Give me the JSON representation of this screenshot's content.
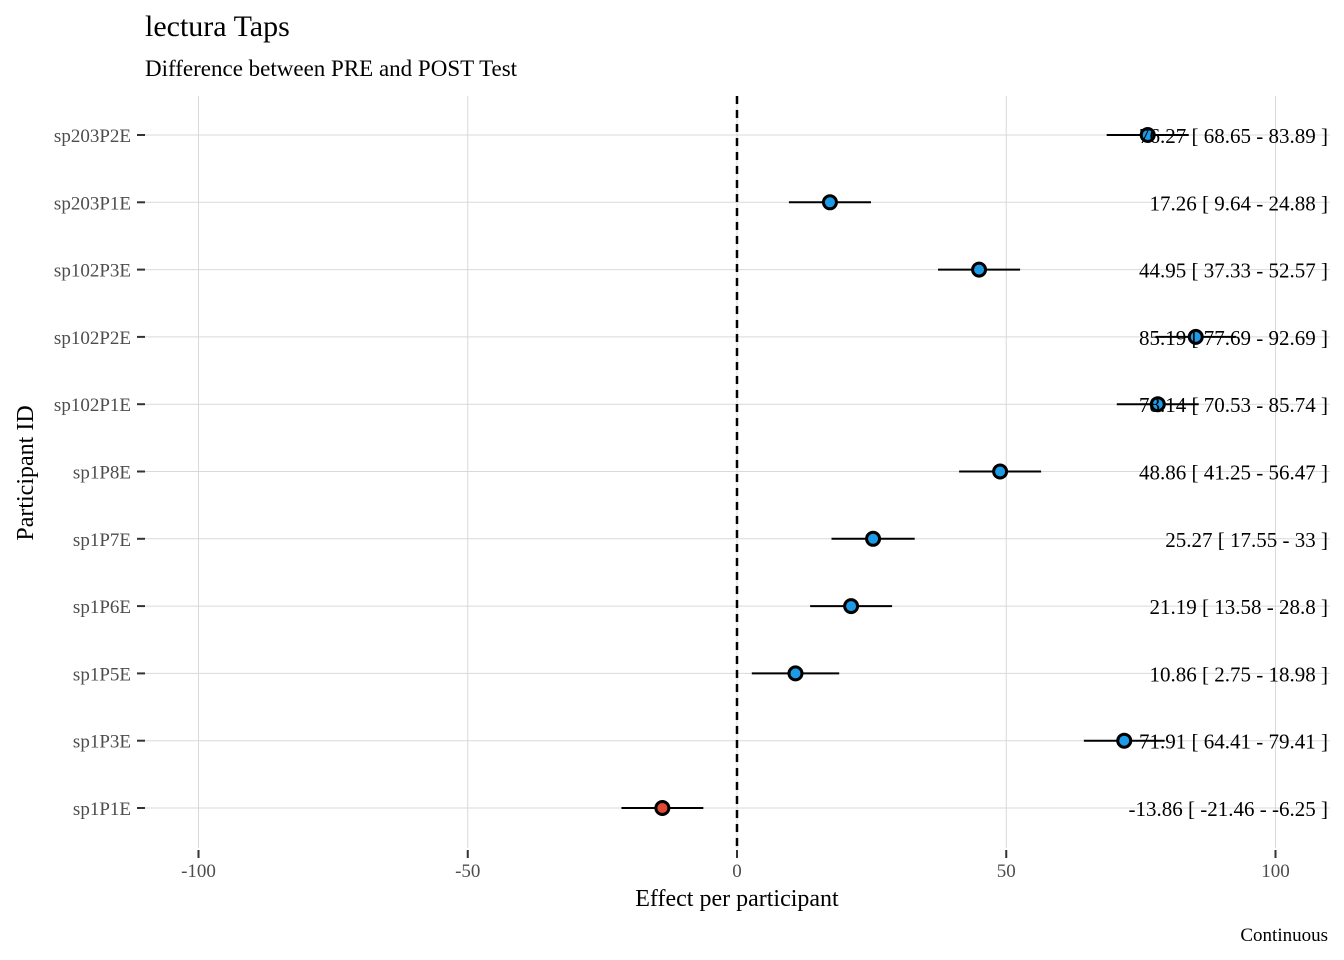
{
  "chart_data": {
    "type": "forest",
    "title": "lectura Taps",
    "subtitle": "Difference between PRE and POST Test",
    "xlabel": "Effect per participant",
    "ylabel": "Participant ID",
    "caption": "Continuous",
    "xlim": [
      -110,
      100
    ],
    "x_ticks": [
      -100,
      -50,
      0,
      50,
      100
    ],
    "x_tick_labels": [
      "-100",
      "-50",
      "0",
      "50",
      "100"
    ],
    "reference_line": 0,
    "grid": true,
    "colors": {
      "positive": "#1e9be6",
      "negative": "#e34a33",
      "grid": "#d9d9d9"
    },
    "rows": [
      {
        "id": "sp203P2E",
        "estimate": 76.27,
        "lower": 68.65,
        "upper": 83.89,
        "label": "76.27 [ 68.65 - 83.89 ]"
      },
      {
        "id": "sp203P1E",
        "estimate": 17.26,
        "lower": 9.64,
        "upper": 24.88,
        "label": "17.26 [ 9.64 - 24.88 ]"
      },
      {
        "id": "sp102P3E",
        "estimate": 44.95,
        "lower": 37.33,
        "upper": 52.57,
        "label": "44.95 [ 37.33 - 52.57 ]"
      },
      {
        "id": "sp102P2E",
        "estimate": 85.19,
        "lower": 77.69,
        "upper": 92.69,
        "label": "85.19 [ 77.69 - 92.69 ]"
      },
      {
        "id": "sp102P1E",
        "estimate": 78.14,
        "lower": 70.53,
        "upper": 85.74,
        "label": "78.14 [ 70.53 - 85.74 ]"
      },
      {
        "id": "sp1P8E",
        "estimate": 48.86,
        "lower": 41.25,
        "upper": 56.47,
        "label": "48.86 [ 41.25 - 56.47 ]"
      },
      {
        "id": "sp1P7E",
        "estimate": 25.27,
        "lower": 17.55,
        "upper": 33,
        "label": "25.27 [ 17.55 - 33 ]"
      },
      {
        "id": "sp1P6E",
        "estimate": 21.19,
        "lower": 13.58,
        "upper": 28.8,
        "label": "21.19 [ 13.58 - 28.8 ]"
      },
      {
        "id": "sp1P5E",
        "estimate": 10.86,
        "lower": 2.75,
        "upper": 18.98,
        "label": "10.86 [ 2.75 - 18.98 ]"
      },
      {
        "id": "sp1P3E",
        "estimate": 71.91,
        "lower": 64.41,
        "upper": 79.41,
        "label": "71.91 [ 64.41 - 79.41 ]"
      },
      {
        "id": "sp1P1E",
        "estimate": -13.86,
        "lower": -21.46,
        "upper": -6.25,
        "label": "-13.86 [ -21.46 - -6.25 ]"
      }
    ]
  }
}
